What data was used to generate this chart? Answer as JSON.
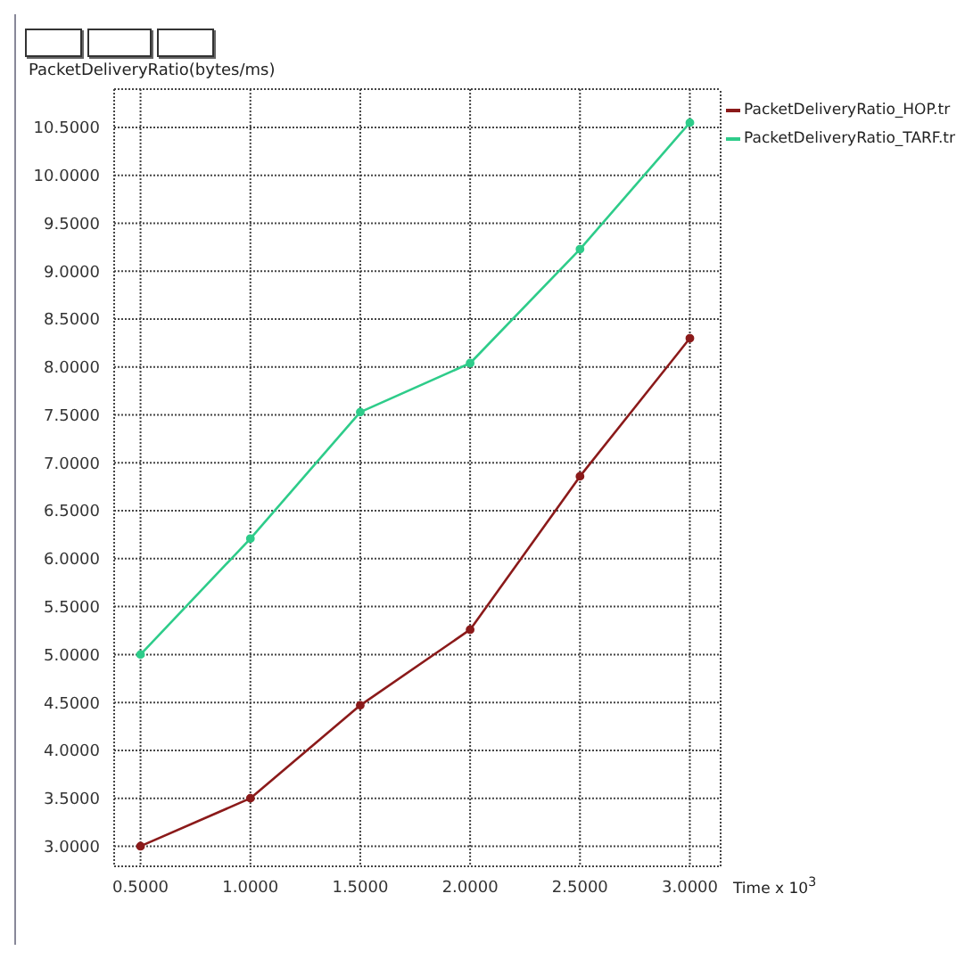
{
  "chart_data": {
    "type": "line",
    "ylabel": "PacketDeliveryRatio(bytes/ms)",
    "xlabel": "Time x 10$^{3}$",
    "x": [
      0.5,
      1.0,
      1.5,
      2.0,
      2.5,
      3.0
    ],
    "series": [
      {
        "name": "PacketDeliveryRatio_HOP.tr",
        "color": "#8b1a1a",
        "values": [
          3.0,
          3.5,
          4.47,
          5.26,
          6.86,
          8.3
        ]
      },
      {
        "name": "PacketDeliveryRatio_TARF.tr",
        "color": "#2ecc8a",
        "values": [
          5.0,
          6.21,
          7.53,
          8.04,
          9.23,
          10.55
        ]
      }
    ],
    "xlim": [
      0.38,
      3.14
    ],
    "ylim": [
      2.79,
      10.9
    ],
    "xticks": [
      {
        "value": 0.5,
        "label": "0.5000"
      },
      {
        "value": 1.0,
        "label": "1.0000"
      },
      {
        "value": 1.5,
        "label": "1.5000"
      },
      {
        "value": 2.0,
        "label": "2.0000"
      },
      {
        "value": 2.5,
        "label": "2.5000"
      },
      {
        "value": 3.0,
        "label": "3.0000"
      }
    ],
    "yticks": [
      {
        "value": 3,
        "label": "3.0000"
      },
      {
        "value": 3.5,
        "label": "3.5000"
      },
      {
        "value": 4,
        "label": "4.0000"
      },
      {
        "value": 4.5,
        "label": "4.5000"
      },
      {
        "value": 5,
        "label": "5.0000"
      },
      {
        "value": 5.5,
        "label": "5.5000"
      },
      {
        "value": 6,
        "label": "6.0000"
      },
      {
        "value": 6.5,
        "label": "6.5000"
      },
      {
        "value": 7,
        "label": "7.0000"
      },
      {
        "value": 7.5,
        "label": "7.5000"
      },
      {
        "value": 8,
        "label": "8.0000"
      },
      {
        "value": 8.5,
        "label": "8.5000"
      },
      {
        "value": 9,
        "label": "9.0000"
      },
      {
        "value": 9.5,
        "label": "9.5000"
      },
      {
        "value": 10,
        "label": "10.0000"
      },
      {
        "value": 10.5,
        "label": "10.5000"
      }
    ],
    "grid": true,
    "legend": "top right",
    "marker": "circle",
    "line_style": "solid"
  }
}
